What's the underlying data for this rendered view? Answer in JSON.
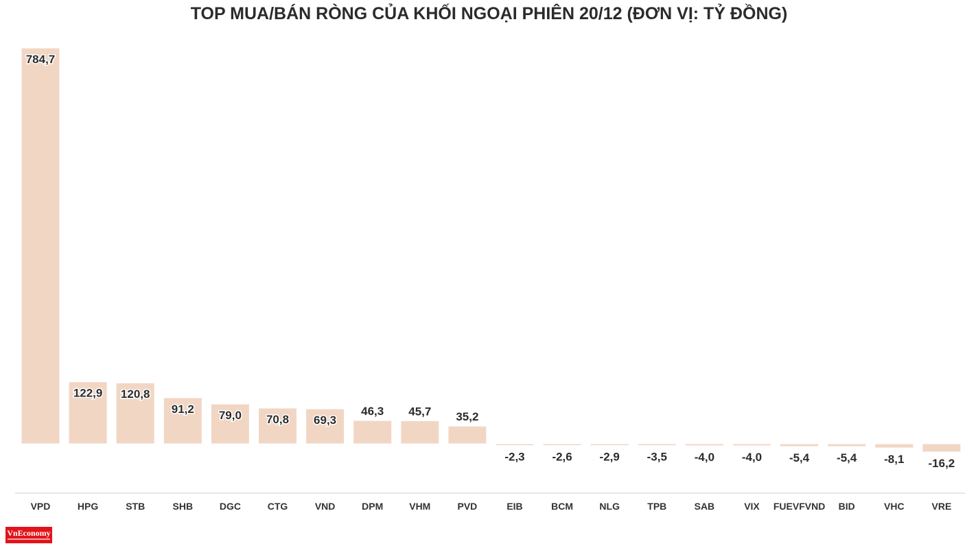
{
  "chart_data": {
    "type": "bar",
    "title": "TOP MUA/BÁN RÒNG CỦA KHỐI NGOẠI PHIÊN 20/12 (ĐƠN VỊ: TỶ ĐỒNG)",
    "categories": [
      "VPD",
      "HPG",
      "STB",
      "SHB",
      "DGC",
      "CTG",
      "VND",
      "DPM",
      "VHM",
      "PVD",
      "EIB",
      "BCM",
      "NLG",
      "TPB",
      "SAB",
      "VIX",
      "FUEVFVND",
      "BID",
      "VHC",
      "VRE"
    ],
    "values": [
      784.7,
      122.9,
      120.8,
      91.2,
      79.0,
      70.8,
      69.3,
      46.3,
      45.7,
      35.2,
      -2.3,
      -2.6,
      -2.9,
      -3.5,
      -4.0,
      -4.0,
      -5.4,
      -5.4,
      -8.1,
      -16.2
    ],
    "value_labels": [
      "784,7",
      "122,9",
      "120,8",
      "91,2",
      "79,0",
      "70,8",
      "69,3",
      "46,3",
      "45,7",
      "35,2",
      "-2,3",
      "-2,6",
      "-2,9",
      "-3,5",
      "-4,0",
      "-4,0",
      "-5,4",
      "-5,4",
      "-8,1",
      "-16,2"
    ],
    "xlabel": "",
    "ylabel": "",
    "ylim": [
      -16.2,
      784.7
    ],
    "grid": false,
    "legend": "none",
    "colors": {
      "bar": "#f2d6c4",
      "bar_outline": "#ffffff",
      "label": "#2b2b2b",
      "axis_line": "#e6e6e6",
      "tick_label": "#333333"
    }
  },
  "logo": {
    "name": "VnEconomy",
    "color": "#e3131b"
  }
}
